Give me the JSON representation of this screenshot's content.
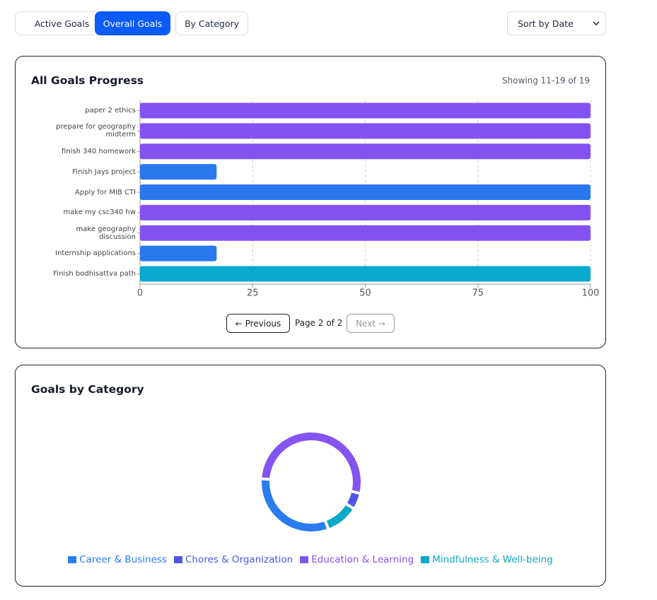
{
  "tabs": [
    "Active Goals",
    "Overall Goals",
    "By Category"
  ],
  "sort": "Sort by Date",
  "chart_data": [
    {
      "type": "bar",
      "orientation": "horizontal",
      "title": "All Goals Progress",
      "subtitle": "Showing 11-19 of 19",
      "categories": [
        "paper 2 ethics",
        "prepare for geography midterm",
        "finish 340 homework",
        "Finish Jays project",
        "Apply for MIB CTI",
        "make my csc340 hw",
        "make geography discussion",
        "Internship applications",
        "Finish bodhisattva path"
      ],
      "values": [
        100,
        100,
        100,
        17,
        100,
        100,
        100,
        17,
        100
      ],
      "colors": [
        "#8452f2",
        "#8452f2",
        "#8452f2",
        "#2a78ee",
        "#2a78ee",
        "#8452f2",
        "#8452f2",
        "#2a78ee",
        "#08aacd"
      ],
      "xlim": [
        0,
        100
      ],
      "xticks": [
        0,
        25,
        50,
        75,
        100
      ],
      "grid": true
    },
    {
      "type": "doughnut",
      "title": "Goals by Category",
      "categories": [
        "Career & Business",
        "Chores & Organization",
        "Education & Learning",
        "Mindfulness & Well-being"
      ],
      "values": [
        6,
        1,
        10,
        2
      ],
      "colors": [
        "#2a7cf0",
        "#4f54e8",
        "#8454f0",
        "#0aa8c8"
      ],
      "legend": "bottom"
    }
  ],
  "pagination": {
    "previous": "← Previous",
    "page": "Page 2 of 2",
    "next": "Next →"
  }
}
